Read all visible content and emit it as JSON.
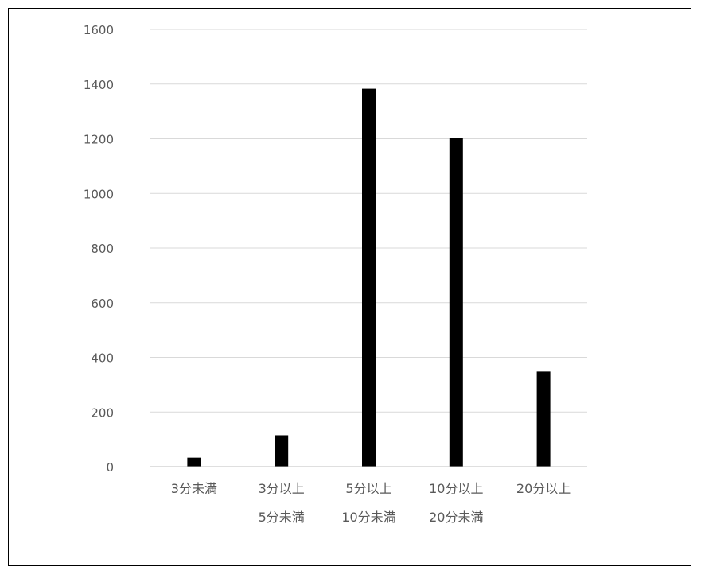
{
  "chart_data": {
    "type": "bar",
    "title": "",
    "xlabel": "",
    "ylabel": "",
    "categories": [
      [
        "3分未満"
      ],
      [
        "3分以上",
        "5分未満"
      ],
      [
        "5分以上",
        "10分未満"
      ],
      [
        "10分以上",
        "20分未満"
      ],
      [
        "20分以上"
      ]
    ],
    "values": [
      33,
      115,
      1383,
      1204,
      348
    ],
    "ylim": [
      0,
      1600
    ],
    "yticks": [
      "0",
      "200",
      "400",
      "600",
      "800",
      "1000",
      "1200",
      "1400",
      "1600"
    ],
    "grid": true,
    "legend": "none",
    "colors": {
      "bar": "#000000",
      "grid": "#d9d9d9",
      "axis": "#bfbfbf",
      "text": "#595959"
    }
  }
}
